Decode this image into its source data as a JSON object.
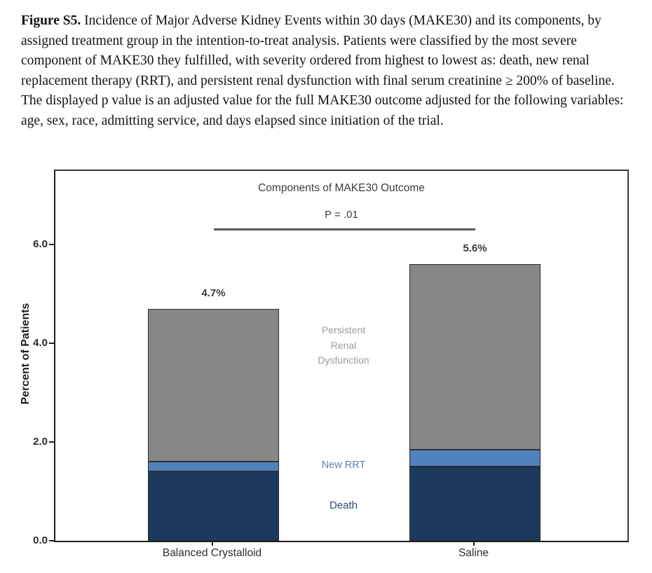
{
  "caption": {
    "label": "Figure S5.",
    "lines": [
      "Incidence of Major Adverse Kidney Events within 30 days (MAKE30) and its components, by",
      "assigned treatment group in the intention-to-treat analysis. Patients were classified by the most severe",
      "component of MAKE30 they fulfilled, with severity ordered from highest to lowest as: death, new renal",
      "replacement therapy (RRT), and persistent renal dysfunction with final serum creatinine ≥ 200% of baseline.",
      "The displayed p value is an adjusted value for the full MAKE30 outcome adjusted for the following variables:",
      "age, sex, race, admitting service, and days elapsed since initiation of the trial."
    ]
  },
  "chart": {
    "component_labels": {
      "persistent": [
        "Persistent",
        "Renal",
        "Dysfunction"
      ],
      "new_rrt": "New RRT",
      "death": "Death"
    }
  },
  "chart_data": {
    "type": "bar",
    "stacked": true,
    "title": "Components of MAKE30 Outcome",
    "p_value": "P = .01",
    "ylabel": "Percent of Patients",
    "xlabel": "",
    "categories": [
      "Balanced Crystalloid",
      "Saline"
    ],
    "series": [
      {
        "name": "Death",
        "color": "#1c3a5e",
        "values": [
          1.4,
          1.5
        ]
      },
      {
        "name": "New RRT",
        "color": "#5082be",
        "values": [
          0.2,
          0.35
        ]
      },
      {
        "name": "Persistent Renal Dysfunction",
        "color": "#878787",
        "values": [
          3.1,
          3.75
        ]
      }
    ],
    "totals_labels": [
      "4.7%",
      "5.6%"
    ],
    "yticks": [
      0.0,
      2.0,
      4.0,
      6.0
    ],
    "ytick_labels": [
      "0.0",
      "2.0",
      "4.0",
      "6.0"
    ],
    "ylim": [
      0,
      7.5
    ],
    "grid": false,
    "legend_position": "between-bars-annotations",
    "annotation_colors": {
      "persistent": "#9b9b9b",
      "new_rrt": "#5d82b2",
      "death": "#2d4a73"
    }
  }
}
